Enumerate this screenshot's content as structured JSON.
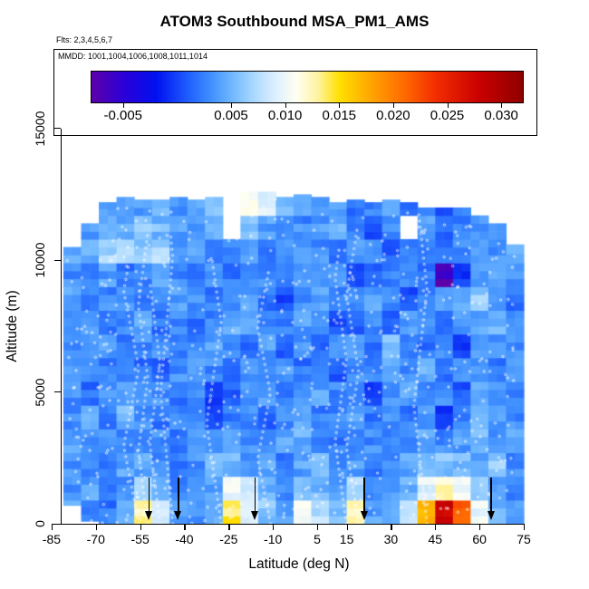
{
  "annotations": {
    "flights": "Flts: 2,3,4,5,6,7",
    "mmdd": "MMDD: 1001,1004,1006,1008,1011,1014"
  },
  "chart_data": {
    "type": "heatmap",
    "title": "ATOM3 Southbound MSA_PM1_AMS",
    "xlabel": "Latitude (deg N)",
    "ylabel": "Altitude (m)",
    "xlim": [
      -81.6,
      79.3
    ],
    "ylim": [
      0,
      16950
    ],
    "x_ticks": [
      -85,
      -70,
      -55,
      -40,
      -25,
      -10,
      5,
      15,
      30,
      45,
      60,
      75
    ],
    "y_ticks": [
      0,
      5000,
      10000,
      15000
    ],
    "grid_on": false,
    "colorbar": {
      "domain": [
        -0.008,
        0.032
      ],
      "tick_values": [
        -0.005,
        0.005,
        0.01,
        0.015,
        0.02,
        0.025,
        0.03
      ],
      "tick_labels": [
        "-0.005",
        "0.005",
        "0.010",
        "0.015",
        "0.020",
        "0.025",
        "0.030"
      ],
      "stops": [
        [
          -0.008,
          "#5D00A8"
        ],
        [
          -0.005,
          "#2B00D8"
        ],
        [
          -0.002,
          "#0010F0"
        ],
        [
          0.001,
          "#1F5FFF"
        ],
        [
          0.003,
          "#3E8EFF"
        ],
        [
          0.005,
          "#6FB7FF"
        ],
        [
          0.007,
          "#A8D8FF"
        ],
        [
          0.009,
          "#DCEFFF"
        ],
        [
          0.011,
          "#FFFFF2"
        ],
        [
          0.013,
          "#FFF3A0"
        ],
        [
          0.015,
          "#FFE000"
        ],
        [
          0.018,
          "#FFA300"
        ],
        [
          0.021,
          "#FF6A00"
        ],
        [
          0.024,
          "#F22C00"
        ],
        [
          0.028,
          "#C80000"
        ],
        [
          0.032,
          "#8F0000"
        ]
      ]
    },
    "grid": {
      "lat_start": -81,
      "lat_step": 6,
      "alt_start": 0,
      "alt_step": 900,
      "col_tops": [
        10500,
        11400,
        12200,
        12400,
        12300,
        12300,
        12400,
        12300,
        12400,
        12700,
        12800,
        12800,
        12400,
        12500,
        12400,
        12200,
        12300,
        12200,
        12300,
        12200,
        12000,
        12000,
        12000,
        11800,
        11400,
        10600
      ],
      "col_bottoms": [
        700,
        100,
        0,
        0,
        0,
        0,
        0,
        0,
        0,
        0,
        0,
        0,
        0,
        0,
        0,
        0,
        0,
        0,
        0,
        0,
        0,
        0,
        0,
        0,
        0,
        0
      ],
      "values": [
        [
          0.004,
          0.003,
          0.002,
          0.004,
          0.013,
          0.008,
          0.004,
          0.003,
          0.005,
          0.014,
          0.009,
          0.006,
          0.004,
          0.011,
          0.008,
          0.005,
          0.012,
          0.004,
          0.005,
          0.008,
          0.018,
          0.028,
          0.022,
          0.01,
          0.005,
          0.004
        ],
        [
          0.003,
          0.004,
          0.003,
          0.003,
          0.007,
          0.005,
          0.003,
          0.004,
          0.004,
          0.01,
          0.008,
          0.005,
          0.003,
          0.006,
          0.005,
          0.004,
          0.007,
          0.003,
          0.004,
          0.005,
          0.009,
          0.012,
          0.01,
          0.006,
          0.004,
          0.003
        ],
        [
          0.003,
          0.003,
          0.002,
          0.004,
          0.004,
          0.003,
          0.002,
          0.003,
          0.006,
          0.005,
          0.004,
          0.004,
          0.002,
          0.004,
          0.005,
          0.003,
          0.004,
          0.002,
          0.003,
          0.004,
          0.005,
          0.006,
          0.005,
          0.004,
          0.006,
          0.003
        ],
        [
          0.004,
          0.003,
          0.003,
          0.003,
          0.002,
          0.003,
          0.001,
          0.004,
          0.003,
          0.004,
          0.003,
          0.003,
          0.004,
          0.005,
          0.003,
          0.002,
          0.003,
          0.003,
          0.002,
          0.003,
          0.004,
          0.003,
          0.004,
          0.005,
          0.003,
          0.004
        ],
        [
          0.003,
          0.004,
          0.002,
          0.005,
          0.003,
          0.002,
          0.003,
          0.003,
          0.001,
          0.002,
          0.003,
          0.001,
          0.003,
          0.004,
          0.002,
          0.003,
          0.004,
          0.002,
          0.003,
          0.002,
          0.003,
          0.0,
          0.003,
          0.006,
          0.004,
          0.003
        ],
        [
          0.003,
          0.002,
          0.003,
          0.004,
          0.003,
          0.003,
          0.002,
          0.003,
          0.0,
          0.001,
          0.003,
          0.004,
          0.002,
          0.003,
          0.004,
          0.003,
          0.002,
          0.0,
          0.003,
          0.004,
          0.002,
          0.003,
          0.001,
          0.004,
          0.003,
          0.002
        ],
        [
          0.004,
          0.003,
          0.002,
          0.003,
          0.002,
          0.001,
          0.003,
          0.004,
          0.003,
          0.002,
          0.003,
          0.003,
          0.004,
          0.002,
          0.003,
          0.001,
          0.003,
          0.003,
          0.004,
          0.003,
          0.005,
          0.002,
          0.003,
          0.003,
          0.002,
          0.004
        ],
        [
          0.003,
          0.004,
          0.004,
          0.002,
          0.003,
          0.003,
          0.002,
          0.003,
          0.004,
          0.003,
          0.002,
          0.004,
          0.001,
          0.003,
          0.002,
          0.003,
          0.004,
          0.002,
          0.005,
          0.003,
          0.002,
          0.003,
          0.0,
          0.004,
          0.003,
          0.003
        ],
        [
          0.003,
          0.003,
          0.002,
          0.003,
          0.004,
          0.002,
          0.003,
          0.002,
          0.003,
          0.005,
          0.004,
          0.003,
          0.002,
          0.004,
          0.003,
          0.0,
          0.001,
          0.003,
          0.002,
          0.004,
          0.003,
          0.002,
          0.003,
          0.004,
          0.005,
          0.003
        ],
        [
          0.004,
          0.002,
          0.003,
          0.003,
          0.002,
          0.003,
          0.004,
          0.003,
          0.002,
          0.003,
          0.004,
          0.002,
          0.0,
          0.003,
          0.004,
          0.002,
          0.003,
          0.004,
          0.003,
          0.001,
          0.002,
          0.003,
          0.004,
          0.006,
          0.003,
          0.002
        ],
        [
          0.003,
          0.003,
          0.004,
          0.002,
          0.003,
          0.004,
          0.003,
          0.002,
          0.003,
          0.002,
          0.003,
          0.003,
          0.002,
          0.004,
          0.003,
          0.003,
          0.001,
          0.002,
          0.003,
          0.003,
          0.002,
          -0.007,
          0.0,
          0.003,
          0.004,
          0.003
        ],
        [
          0.004,
          0.005,
          0.007,
          0.007,
          0.006,
          0.007,
          0.003,
          0.004,
          0.002,
          0.003,
          0.004,
          0.002,
          0.003,
          0.004,
          0.003,
          0.002,
          0.003,
          0.003,
          0.001,
          0.002,
          0.003,
          0.002,
          0.003,
          0.004,
          0.003,
          0.005
        ],
        [
          null,
          0.004,
          0.005,
          0.004,
          0.006,
          0.005,
          0.004,
          0.003,
          0.005,
          null,
          0.006,
          0.004,
          0.003,
          0.003,
          0.004,
          0.005,
          0.002,
          0.001,
          0.003,
          null,
          0.004,
          0.001,
          0.002,
          0.003,
          0.004,
          null
        ],
        [
          null,
          null,
          0.004,
          0.003,
          0.004,
          0.005,
          0.003,
          0.004,
          0.005,
          null,
          0.01,
          0.009,
          0.006,
          0.005,
          0.004,
          0.004,
          0.002,
          0.003,
          0.004,
          0.002,
          0.003,
          0.001,
          0.002,
          null,
          null,
          null
        ]
      ]
    },
    "track_dots": {
      "style": "open-circle",
      "color": "#FFFFFF",
      "approx_count": 620
    },
    "profile_lats": [
      -58,
      -54,
      -50,
      -46,
      -30,
      -13,
      13,
      17,
      40
    ],
    "arrows_lat": [
      -52,
      -42,
      -16,
      21,
      64
    ]
  }
}
